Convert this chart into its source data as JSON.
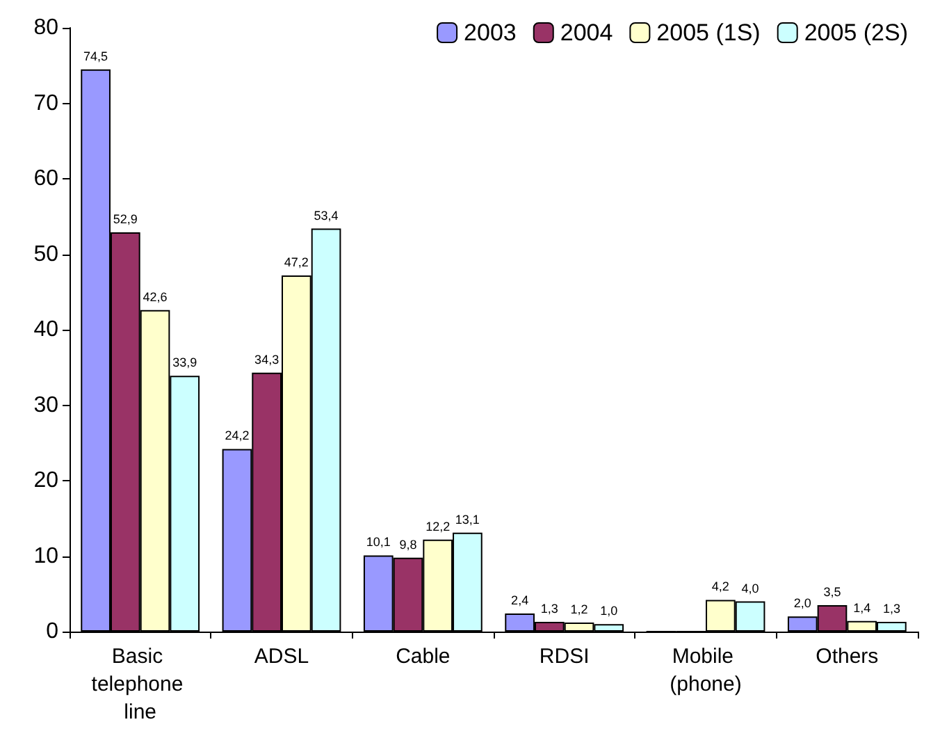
{
  "chart_data": {
    "type": "bar",
    "categories": [
      "Basic telephone line",
      "ADSL",
      "Cable",
      "RDSI",
      "Mobile (phone)",
      "Others"
    ],
    "series": [
      {
        "name": "2003",
        "color": "#9999ff",
        "values": [
          74.5,
          24.2,
          10.1,
          2.4,
          0,
          2.0
        ],
        "value_labels": [
          "74,5",
          "24,2",
          "10,1",
          "2,4",
          null,
          "2,0"
        ]
      },
      {
        "name": "2004",
        "color": "#993366",
        "values": [
          52.9,
          34.3,
          9.8,
          1.3,
          0,
          3.5
        ],
        "value_labels": [
          "52,9",
          "34,3",
          "9,8",
          "1,3",
          null,
          "3,5"
        ]
      },
      {
        "name": "2005 (1S)",
        "color": "#ffffcc",
        "values": [
          42.6,
          47.2,
          12.2,
          1.2,
          4.2,
          1.4
        ],
        "value_labels": [
          "42,6",
          "47,2",
          "12,2",
          "1,2",
          "4,2",
          "1,4"
        ]
      },
      {
        "name": "2005 (2S)",
        "color": "#ccffff",
        "values": [
          33.9,
          53.4,
          13.1,
          1.0,
          4.0,
          1.3
        ],
        "value_labels": [
          "33,9",
          "53,4",
          "13,1",
          "1,0",
          "4,0",
          "1,3"
        ]
      }
    ],
    "ylim": [
      0,
      80
    ],
    "yticks": [
      0,
      10,
      20,
      30,
      40,
      50,
      60,
      70,
      80
    ],
    "grid": false,
    "legend": "top right"
  }
}
